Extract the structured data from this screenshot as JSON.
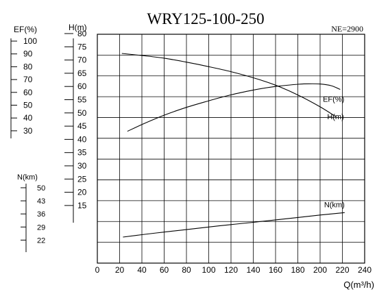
{
  "chart_data": {
    "type": "line",
    "title": "WRY125-100-250",
    "subtitle": "NE=2900",
    "xlabel": "Q(m³/h)",
    "xlim": [
      0,
      240
    ],
    "x_ticks": [
      "0",
      "20",
      "40",
      "60",
      "80",
      "100",
      "120",
      "140",
      "160",
      "180",
      "200",
      "220",
      "240"
    ],
    "grid": true,
    "axes": {
      "ef": {
        "label": "EF(%)",
        "min": 30,
        "max": 100,
        "ticks": [
          "100",
          "90",
          "80",
          "70",
          "60",
          "50",
          "40",
          "30"
        ]
      },
      "h": {
        "label": "H(m)",
        "min": 15,
        "max": 80,
        "ticks": [
          "80",
          "75",
          "70",
          "65",
          "60",
          "55",
          "50",
          "45",
          "40",
          "35",
          "30",
          "25",
          "20",
          "15"
        ]
      },
      "n": {
        "label": "N(km)",
        "min": 22,
        "max": 50,
        "ticks": [
          "50",
          "43",
          "36",
          "29",
          "22"
        ]
      }
    },
    "series": [
      {
        "name": "H(m)",
        "axis": "h",
        "x": [
          22,
          40,
          60,
          80,
          100,
          120,
          140,
          160,
          180,
          200,
          214
        ],
        "y": [
          72.5,
          71.7,
          70.7,
          69.2,
          67.5,
          65.6,
          63.3,
          60.5,
          56.8,
          52.3,
          48.6
        ]
      },
      {
        "name": "EF(%)",
        "axis": "ef",
        "x": [
          27,
          40,
          60,
          80,
          100,
          120,
          140,
          160,
          180,
          190,
          200,
          210,
          218
        ],
        "y": [
          29.6,
          34.9,
          42.2,
          48.3,
          53.4,
          58.1,
          61.8,
          64.6,
          66.3,
          66.7,
          66.5,
          65.2,
          62.3
        ]
      },
      {
        "name": "N(km)",
        "axis": "n",
        "x": [
          23,
          40,
          60,
          80,
          100,
          120,
          140,
          160,
          180,
          200,
          222
        ],
        "y": [
          23.6,
          24.9,
          26.3,
          27.6,
          29.0,
          30.3,
          31.5,
          32.8,
          34.1,
          35.4,
          36.7
        ]
      }
    ]
  }
}
